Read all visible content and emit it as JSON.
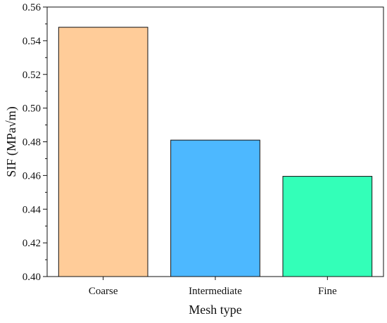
{
  "chart_data": {
    "type": "bar",
    "title": "",
    "xlabel": "Mesh type",
    "ylabel": "SIF (MPa√m)",
    "categories": [
      "Coarse",
      "Intermediate",
      "Fine"
    ],
    "values": [
      0.548,
      0.481,
      0.4595
    ],
    "ylim": [
      0.4,
      0.56
    ],
    "yticks": [
      "0.40",
      "0.42",
      "0.44",
      "0.46",
      "0.48",
      "0.50",
      "0.52",
      "0.54",
      "0.56"
    ],
    "grid": false,
    "legend": "none",
    "colors": [
      "#FFCC99",
      "#4DB8FF",
      "#33FFB8"
    ],
    "edge_color": "#111111"
  }
}
